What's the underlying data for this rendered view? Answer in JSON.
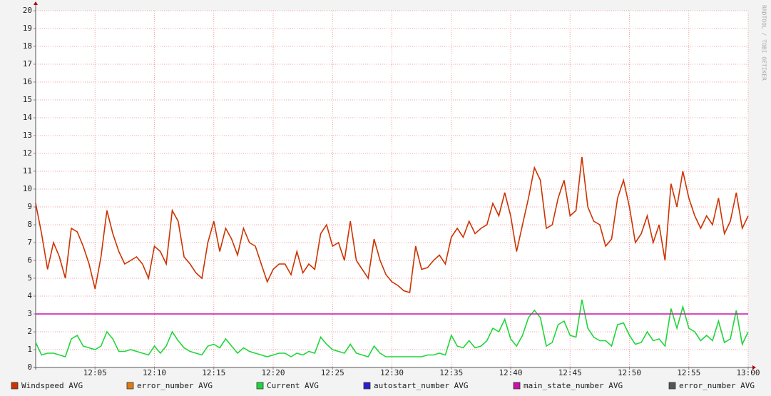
{
  "chart_data": {
    "type": "line",
    "watermark": "RRDTOOL / TOBI OETIKER",
    "x": [
      0,
      0.5,
      1,
      1.5,
      2,
      2.5,
      3,
      3.5,
      4,
      4.5,
      5,
      5.5,
      6,
      6.5,
      7,
      7.5,
      8,
      8.5,
      9,
      9.5,
      10,
      10.5,
      11,
      11.5,
      12,
      12.5,
      13,
      13.5,
      14,
      14.5,
      15,
      15.5,
      16,
      16.5,
      17,
      17.5,
      18,
      18.5,
      19,
      19.5,
      20,
      20.5,
      21,
      21.5,
      22,
      22.5,
      23,
      23.5,
      24,
      24.5,
      25,
      25.5,
      26,
      26.5,
      27,
      27.5,
      28,
      28.5,
      29,
      29.5,
      30,
      30.5,
      31,
      31.5,
      32,
      32.5,
      33,
      33.5,
      34,
      34.5,
      35,
      35.5,
      36,
      36.5,
      37,
      37.5,
      38,
      38.5,
      39,
      39.5,
      40,
      40.5,
      41,
      41.5,
      42,
      42.5,
      43,
      43.5,
      44,
      44.5,
      45,
      45.5,
      46,
      46.5,
      47,
      47.5,
      48,
      48.5,
      49,
      49.5,
      50,
      50.5,
      51,
      51.5,
      52,
      52.5,
      53,
      53.5,
      54,
      54.5,
      55,
      55.5,
      56,
      56.5,
      57,
      57.5,
      58,
      58.5,
      59,
      59.5,
      60
    ],
    "xlim": [
      0,
      60
    ],
    "xticks": [
      {
        "value": 5,
        "label": "12:05"
      },
      {
        "value": 10,
        "label": "12:10"
      },
      {
        "value": 15,
        "label": "12:15"
      },
      {
        "value": 20,
        "label": "12:20"
      },
      {
        "value": 25,
        "label": "12:25"
      },
      {
        "value": 30,
        "label": "12:30"
      },
      {
        "value": 35,
        "label": "12:35"
      },
      {
        "value": 40,
        "label": "12:40"
      },
      {
        "value": 45,
        "label": "12:45"
      },
      {
        "value": 50,
        "label": "12:50"
      },
      {
        "value": 55,
        "label": "12:55"
      },
      {
        "value": 60,
        "label": "13:00"
      }
    ],
    "ylim": [
      0,
      20
    ],
    "yticks": [
      0,
      1,
      2,
      3,
      4,
      5,
      6,
      7,
      8,
      9,
      10,
      11,
      12,
      13,
      14,
      15,
      16,
      17,
      18,
      19,
      20
    ],
    "grid": true,
    "series": [
      {
        "name": "Windspeed AVG",
        "color": "#cc3300",
        "values": [
          9.2,
          7.5,
          5.5,
          7.0,
          6.2,
          5.0,
          7.8,
          7.6,
          6.8,
          5.8,
          4.4,
          6.2,
          8.8,
          7.5,
          6.5,
          5.8,
          6.0,
          6.2,
          5.8,
          5.0,
          6.8,
          6.5,
          5.8,
          8.8,
          8.2,
          6.2,
          5.8,
          5.3,
          5.0,
          7.0,
          8.2,
          6.5,
          7.8,
          7.2,
          6.3,
          7.8,
          7.0,
          6.8,
          5.8,
          4.8,
          5.5,
          5.8,
          5.8,
          5.2,
          6.5,
          5.3,
          5.8,
          5.5,
          7.5,
          8.0,
          6.8,
          7.0,
          6.0,
          8.2,
          6.0,
          5.5,
          5.0,
          7.2,
          6.0,
          5.2,
          4.8,
          4.6,
          4.3,
          4.2,
          6.8,
          5.5,
          5.6,
          6.0,
          6.3,
          5.8,
          7.3,
          7.8,
          7.3,
          8.2,
          7.5,
          7.8,
          8.0,
          9.2,
          8.5,
          9.8,
          8.5,
          6.5,
          8.0,
          9.5,
          11.2,
          10.5,
          7.8,
          8.0,
          9.5,
          10.5,
          8.5,
          8.8,
          11.8,
          9.0,
          8.2,
          8.0,
          6.8,
          7.2,
          9.5,
          10.5,
          9.0,
          7.0,
          7.5,
          8.5,
          7.0,
          8.0,
          6.0,
          10.3,
          9.0,
          11.0,
          9.5,
          8.5,
          7.8,
          8.5,
          8.0,
          9.5,
          7.5,
          8.2,
          9.8,
          7.8,
          8.5
        ]
      },
      {
        "name": "error_number AVG",
        "color": "#e07a10"
      },
      {
        "name": "Current AVG",
        "color": "#1fd63a",
        "values": [
          1.4,
          0.7,
          0.8,
          0.8,
          0.7,
          0.6,
          1.6,
          1.8,
          1.2,
          1.1,
          1.0,
          1.2,
          2.0,
          1.6,
          0.9,
          0.9,
          1.0,
          0.9,
          0.8,
          0.7,
          1.2,
          0.8,
          1.2,
          2.0,
          1.5,
          1.1,
          0.9,
          0.8,
          0.7,
          1.2,
          1.3,
          1.1,
          1.6,
          1.2,
          0.8,
          1.1,
          0.9,
          0.8,
          0.7,
          0.6,
          0.7,
          0.8,
          0.8,
          0.6,
          0.8,
          0.7,
          0.9,
          0.8,
          1.7,
          1.3,
          1.0,
          0.9,
          0.8,
          1.3,
          0.8,
          0.7,
          0.6,
          1.2,
          0.8,
          0.6,
          0.6,
          0.6,
          0.6,
          0.6,
          0.6,
          0.6,
          0.7,
          0.7,
          0.8,
          0.7,
          1.8,
          1.2,
          1.1,
          1.5,
          1.1,
          1.2,
          1.5,
          2.2,
          2.0,
          2.7,
          1.6,
          1.2,
          1.8,
          2.8,
          3.2,
          2.8,
          1.2,
          1.4,
          2.4,
          2.6,
          1.8,
          1.7,
          3.8,
          2.2,
          1.7,
          1.5,
          1.5,
          1.2,
          2.4,
          2.5,
          1.8,
          1.3,
          1.4,
          2.0,
          1.5,
          1.6,
          1.2,
          3.3,
          2.2,
          3.4,
          2.2,
          2.0,
          1.5,
          1.8,
          1.5,
          2.6,
          1.4,
          1.6,
          3.2,
          1.3,
          2.0
        ]
      },
      {
        "name": "autostart_number AVG",
        "color": "#2a1fd0"
      },
      {
        "name": "main_state_number AVG",
        "color": "#cc10a8",
        "x": [
          0,
          60
        ],
        "values": [
          3,
          3
        ]
      },
      {
        "name": "error_number AVG",
        "color": "#555555"
      }
    ]
  }
}
